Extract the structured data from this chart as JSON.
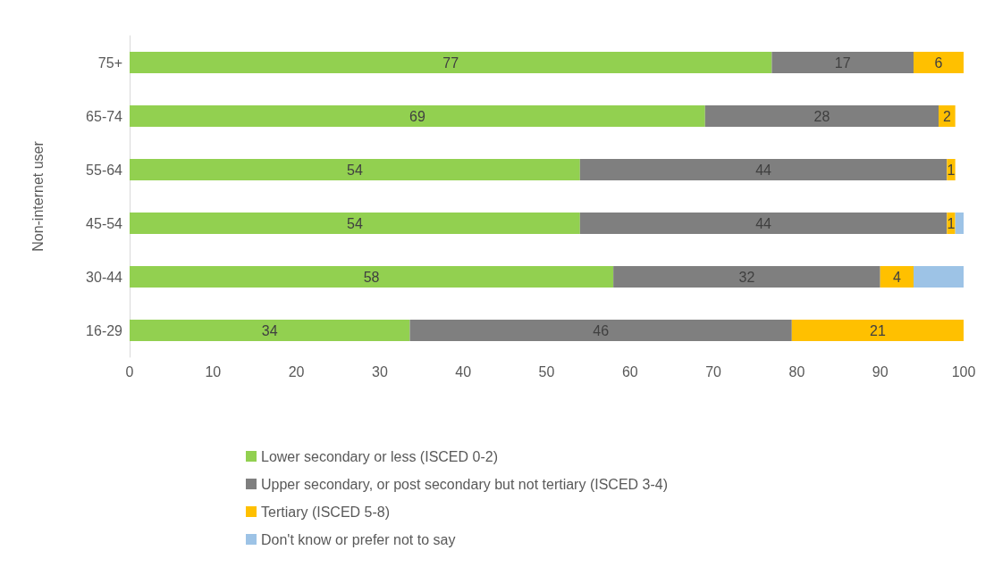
{
  "chart_data": {
    "type": "bar",
    "orientation": "horizontal",
    "stacked": true,
    "ylabel": "Non-internet user",
    "categories": [
      "75+",
      "65-74",
      "55-64",
      "45-54",
      "30-44",
      "16-29"
    ],
    "series": [
      {
        "name": "Lower secondary or less (ISCED 0-2)",
        "color": "#92d050",
        "values": [
          77,
          69,
          54,
          54,
          58,
          33.6
        ],
        "value_labels": [
          "77",
          "69",
          "54",
          "54",
          "58",
          "34"
        ]
      },
      {
        "name": "Upper secondary, or post secondary but not tertiary (ISCED 3-4)",
        "color": "#7f7f7f",
        "values": [
          17,
          28,
          44,
          44,
          32,
          45.8
        ],
        "value_labels": [
          "17",
          "28",
          "44",
          "44",
          "32",
          "46"
        ]
      },
      {
        "name": "Tertiary (ISCED 5-8)",
        "color": "#ffc000",
        "values": [
          6,
          2,
          1,
          1,
          4,
          20.6
        ],
        "value_labels": [
          "6",
          "2",
          "1",
          "1",
          "4",
          "21"
        ]
      },
      {
        "name": "Don't know or prefer not to say",
        "color": "#9dc3e6",
        "values": [
          null,
          null,
          null,
          1,
          6,
          null
        ],
        "value_labels": [
          null,
          null,
          null,
          null,
          null,
          null
        ]
      }
    ],
    "xlim": [
      0,
      100
    ],
    "xticks": [
      0,
      10,
      20,
      30,
      40,
      50,
      60,
      70,
      80,
      90,
      100
    ],
    "grid": false,
    "legend": "bottom"
  }
}
